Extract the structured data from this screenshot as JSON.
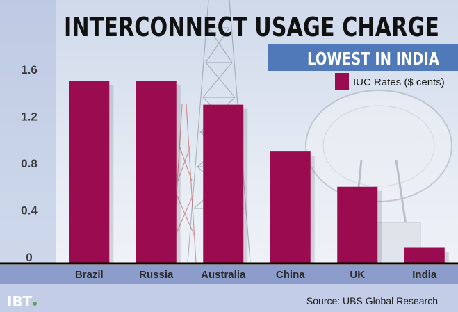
{
  "chart_data": {
    "type": "bar",
    "title": "INTERCONNECT USAGE CHARGE",
    "subtitle": "LOWEST IN INDIA",
    "categories": [
      "Brazil",
      "Russia",
      "Australia",
      "China",
      "UK",
      "India"
    ],
    "series": [
      {
        "name": "IUC Rates ($ cents)",
        "values": [
          1.5,
          1.5,
          1.3,
          0.9,
          0.6,
          0.08
        ]
      }
    ],
    "ylim": [
      0,
      1.6
    ],
    "yticks": [
      0,
      0.4,
      0.8,
      1.2,
      1.6
    ],
    "ytick_labels": [
      "0",
      "0.4",
      "0.8",
      "1.2",
      "1.6"
    ],
    "xlabel": "",
    "ylabel": "",
    "grid": false,
    "legend_position": "top-right",
    "colors": {
      "bar": "#9b0b4f",
      "banner": "#4f79b8",
      "category_band": "#8c9dcb",
      "footer": "#c4cde8",
      "axis": "#000000"
    }
  },
  "footer": {
    "logo_text": "IBT",
    "source": "Source: UBS Global Research"
  }
}
